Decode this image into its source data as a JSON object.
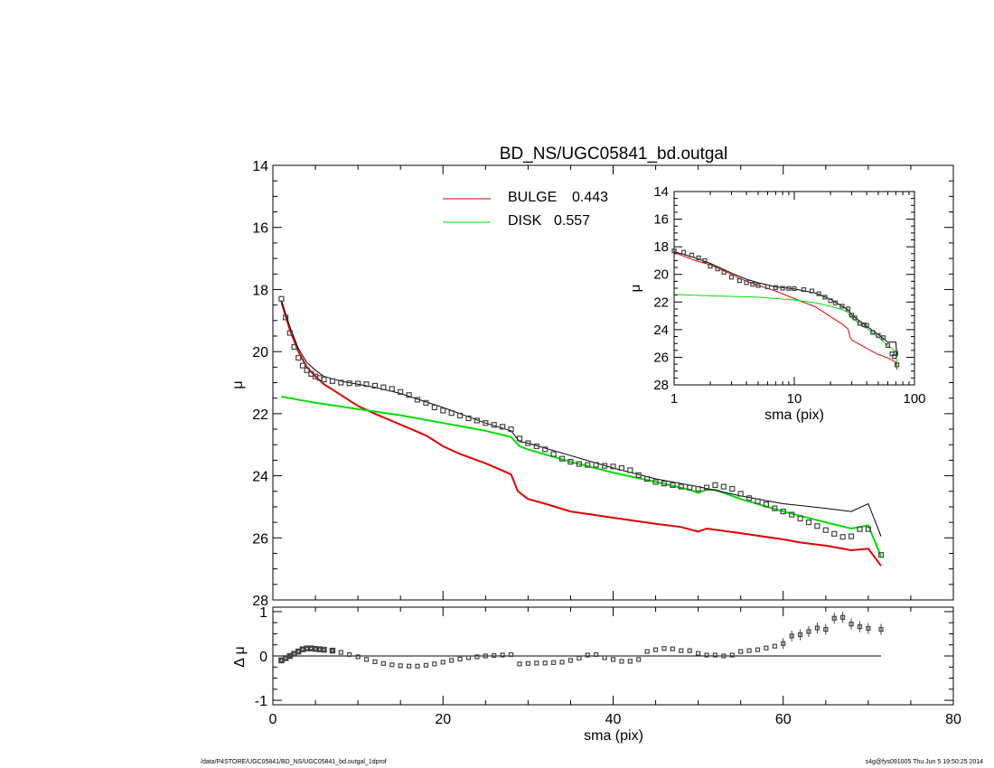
{
  "footer": {
    "left": "/data/P4STORE/UGC05841/BD_NS/UGC05841_bd.outgal_1dprof",
    "right": "s4g@fys091005  Thu Jun  5 19:50:25 2014"
  },
  "colors": {
    "bulge": "#e00000",
    "disk": "#00dd00",
    "total": "#000000",
    "data": "#444444"
  },
  "chart_data": [
    {
      "panel": "main",
      "type": "line",
      "title": "BD_NS/UGC05841_bd.outgal",
      "xlabel": "",
      "ylabel": "μ",
      "xlim": [
        0,
        80
      ],
      "ylim": [
        28,
        14
      ],
      "yticks": [
        "14",
        "16",
        "18",
        "20",
        "22",
        "24",
        "26",
        "28"
      ],
      "legend": [
        {
          "label": "BULGE",
          "value": "0.443",
          "color": "#e00000"
        },
        {
          "label": "DISK",
          "value": "0.557",
          "color": "#00dd00"
        }
      ],
      "legend_placement": "top-center",
      "series": [
        {
          "name": "BULGE",
          "type": "line",
          "x": [
            1,
            2,
            3,
            4,
            5,
            6,
            8,
            10,
            12,
            15,
            18,
            20,
            22,
            25,
            28,
            28.8,
            30,
            32,
            35,
            40,
            45,
            48,
            50,
            51,
            55,
            60,
            62,
            65,
            68,
            70,
            71.5
          ],
          "y": [
            18.4,
            19.3,
            20.0,
            20.5,
            20.8,
            21.05,
            21.4,
            21.75,
            22.0,
            22.35,
            22.7,
            23.05,
            23.3,
            23.6,
            23.95,
            24.5,
            24.75,
            24.9,
            25.15,
            25.35,
            25.55,
            25.65,
            25.8,
            25.7,
            25.85,
            26.05,
            26.15,
            26.25,
            26.4,
            26.35,
            26.9
          ]
        },
        {
          "name": "DISK",
          "type": "line",
          "x": [
            1,
            5,
            10,
            15,
            20,
            25,
            28,
            29,
            30,
            35,
            40,
            45,
            49,
            50,
            51,
            52,
            55,
            60,
            65,
            68,
            70,
            71.5
          ],
          "y": [
            21.45,
            21.65,
            21.85,
            22.05,
            22.3,
            22.55,
            22.75,
            23.05,
            23.15,
            23.55,
            23.9,
            24.2,
            24.45,
            24.55,
            24.45,
            24.45,
            24.75,
            25.15,
            25.5,
            25.7,
            25.6,
            26.6
          ]
        },
        {
          "name": "TOTAL",
          "type": "line",
          "x": [
            1,
            2,
            3,
            4,
            5,
            6,
            8,
            10,
            12,
            15,
            20,
            25,
            28,
            29,
            30,
            35,
            40,
            45,
            50,
            55,
            60,
            65,
            68,
            70,
            71.5
          ],
          "y": [
            18.35,
            19.2,
            19.9,
            20.35,
            20.6,
            20.8,
            20.95,
            21.05,
            21.15,
            21.35,
            21.8,
            22.3,
            22.55,
            22.9,
            22.95,
            23.35,
            23.75,
            24.1,
            24.35,
            24.65,
            24.9,
            25.05,
            25.15,
            24.9,
            25.95
          ]
        },
        {
          "name": "DATA",
          "type": "scatter",
          "x": [
            1,
            1.5,
            2,
            2.5,
            3,
            3.5,
            4,
            4.5,
            5,
            5.5,
            6,
            7,
            8,
            9,
            10,
            11,
            12,
            13,
            14,
            15,
            16,
            17,
            18,
            19,
            20,
            21,
            22,
            23,
            24,
            25,
            26,
            27,
            28,
            29,
            30,
            31,
            32,
            33,
            34,
            35,
            36,
            37,
            38,
            39,
            40,
            41,
            42,
            43,
            44,
            45,
            46,
            47,
            48,
            49,
            50,
            51,
            52,
            53,
            54,
            55,
            56,
            57,
            58,
            59,
            60,
            61,
            62,
            63,
            64,
            65,
            66,
            67,
            68,
            69,
            70,
            71.5
          ],
          "y": [
            18.3,
            18.9,
            19.4,
            19.85,
            20.2,
            20.45,
            20.6,
            20.72,
            20.8,
            20.85,
            20.9,
            20.95,
            21.0,
            21.02,
            21.03,
            21.05,
            21.1,
            21.15,
            21.2,
            21.3,
            21.4,
            21.55,
            21.65,
            21.8,
            21.9,
            21.98,
            22.06,
            22.15,
            22.22,
            22.3,
            22.36,
            22.42,
            22.5,
            22.8,
            22.95,
            23.05,
            23.15,
            23.3,
            23.45,
            23.55,
            23.62,
            23.65,
            23.65,
            23.68,
            23.7,
            23.75,
            23.82,
            23.98,
            24.1,
            24.2,
            24.25,
            24.3,
            24.35,
            24.38,
            24.42,
            24.38,
            24.3,
            24.35,
            24.42,
            24.58,
            24.72,
            24.82,
            24.92,
            25.05,
            25.15,
            25.25,
            25.38,
            25.5,
            25.62,
            25.75,
            25.87,
            25.97,
            25.95,
            25.72,
            25.72,
            26.55
          ]
        }
      ]
    },
    {
      "panel": "residual",
      "type": "scatter",
      "xlabel": "sma (pix)",
      "ylabel": "Δ μ",
      "xlim": [
        0,
        80
      ],
      "ylim": [
        -1.1,
        1.1
      ],
      "xticks": [
        "0",
        "20",
        "40",
        "60",
        "80"
      ],
      "yticks": [
        "1",
        "0",
        "-1"
      ],
      "series": [
        {
          "name": "RESIDUAL",
          "type": "scatter",
          "x": [
            1,
            1.5,
            2,
            2.5,
            3,
            3.5,
            4,
            4.5,
            5,
            5.5,
            6,
            7,
            8,
            9,
            10,
            11,
            12,
            13,
            14,
            15,
            16,
            17,
            18,
            19,
            20,
            21,
            22,
            23,
            24,
            25,
            26,
            27,
            28,
            29,
            30,
            31,
            32,
            33,
            34,
            35,
            36,
            37,
            38,
            39,
            40,
            41,
            42,
            43,
            44,
            45,
            46,
            47,
            48,
            49,
            50,
            51,
            52,
            53,
            54,
            55,
            56,
            57,
            58,
            59,
            60,
            61,
            62,
            63,
            64,
            65,
            66,
            67,
            68,
            69,
            70,
            71.5
          ],
          "y": [
            -0.1,
            -0.05,
            0.0,
            0.05,
            0.1,
            0.15,
            0.17,
            0.17,
            0.16,
            0.15,
            0.14,
            0.12,
            0.08,
            0.03,
            -0.02,
            -0.08,
            -0.13,
            -0.17,
            -0.2,
            -0.22,
            -0.23,
            -0.23,
            -0.21,
            -0.18,
            -0.14,
            -0.1,
            -0.07,
            -0.04,
            -0.02,
            0.0,
            0.01,
            0.02,
            0.03,
            -0.18,
            -0.17,
            -0.16,
            -0.16,
            -0.15,
            -0.14,
            -0.1,
            -0.05,
            0.02,
            0.03,
            -0.04,
            -0.08,
            -0.12,
            -0.12,
            -0.08,
            0.1,
            0.14,
            0.17,
            0.16,
            0.12,
            0.12,
            0.06,
            0.02,
            0.02,
            0.0,
            0.02,
            0.1,
            0.12,
            0.14,
            0.18,
            0.22,
            0.28,
            0.45,
            0.48,
            0.55,
            0.63,
            0.6,
            0.85,
            0.87,
            0.72,
            0.66,
            0.62,
            0.6
          ]
        }
      ]
    },
    {
      "panel": "inset",
      "type": "line",
      "xlabel": "sma (pix)",
      "ylabel": "μ",
      "xscale": "log",
      "xlim": [
        1,
        100
      ],
      "ylim": [
        28,
        14
      ],
      "xticks": [
        "1",
        "10",
        "100"
      ],
      "yticks": [
        "14",
        "16",
        "18",
        "20",
        "22",
        "24",
        "26",
        "28"
      ],
      "series": [
        {
          "name": "BULGE",
          "type": "line",
          "x": [
            1,
            1.5,
            2,
            3,
            4,
            5,
            7,
            10,
            15,
            20,
            25,
            28,
            29,
            30,
            40,
            50,
            60,
            70,
            71.5
          ],
          "y": [
            18.4,
            19.0,
            19.3,
            20.0,
            20.5,
            20.8,
            21.2,
            21.75,
            22.35,
            23.05,
            23.6,
            23.95,
            24.5,
            24.75,
            25.35,
            25.8,
            26.05,
            26.35,
            26.9
          ]
        },
        {
          "name": "DISK",
          "type": "line",
          "x": [
            1,
            2,
            5,
            10,
            15,
            20,
            25,
            28,
            30,
            40,
            50,
            60,
            70,
            71.5
          ],
          "y": [
            21.45,
            21.55,
            21.65,
            21.85,
            22.05,
            22.3,
            22.55,
            22.75,
            23.15,
            23.9,
            24.55,
            25.15,
            25.6,
            26.6
          ]
        },
        {
          "name": "TOTAL",
          "type": "line",
          "x": [
            1,
            1.5,
            2,
            3,
            4,
            5,
            7,
            10,
            15,
            20,
            25,
            28,
            30,
            40,
            50,
            60,
            70,
            71.5
          ],
          "y": [
            18.35,
            18.8,
            19.2,
            19.9,
            20.35,
            20.6,
            20.9,
            21.05,
            21.35,
            21.8,
            22.3,
            22.55,
            22.95,
            23.75,
            24.35,
            24.9,
            24.9,
            25.95
          ]
        },
        {
          "name": "DATA",
          "type": "scatter",
          "x": [
            1,
            1.2,
            1.4,
            1.6,
            1.8,
            2,
            2.3,
            2.6,
            3,
            3.5,
            4,
            4.5,
            5,
            6,
            7,
            8,
            9,
            10,
            12,
            14,
            16,
            18,
            20,
            22,
            25,
            28,
            30,
            32,
            35,
            38,
            40,
            45,
            50,
            55,
            60,
            65,
            68,
            70,
            71.5
          ],
          "y": [
            18.3,
            18.4,
            18.6,
            18.8,
            19.0,
            19.4,
            19.6,
            19.85,
            20.2,
            20.45,
            20.6,
            20.72,
            20.8,
            20.9,
            20.95,
            21.0,
            21.02,
            21.03,
            21.1,
            21.2,
            21.4,
            21.65,
            21.9,
            22.06,
            22.3,
            22.5,
            22.95,
            23.15,
            23.55,
            23.65,
            23.7,
            24.2,
            24.42,
            24.58,
            25.15,
            25.75,
            25.95,
            25.72,
            26.55
          ]
        }
      ]
    }
  ]
}
